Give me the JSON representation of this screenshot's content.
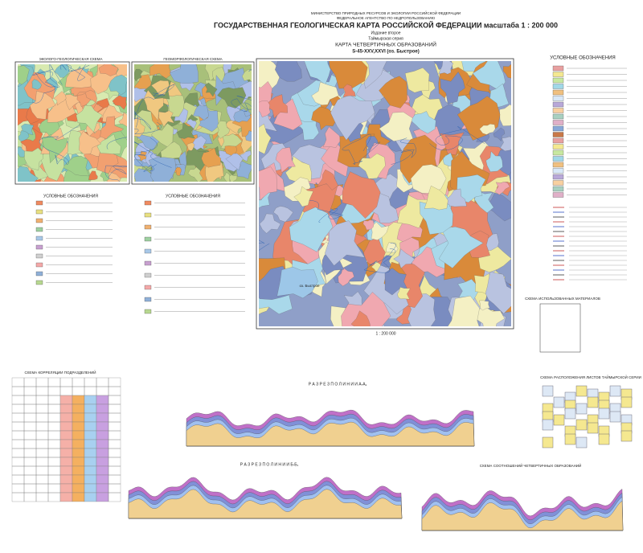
{
  "header": {
    "ministry": "МИНИСТЕРСТВО ПРИРОДНЫХ РЕСУРСОВ И ЭКОЛОГИИ РОССИЙСКОЙ ФЕДЕРАЦИИ",
    "agency": "ФЕДЕРАЛЬНОЕ АГЕНТСТВО ПО НЕДРОПОЛЬЗОВАНИЮ",
    "title": "ГОСУДАРСТВЕННАЯ ГЕОЛОГИЧЕСКАЯ КАРТА РОССИЙСКОЙ ФЕДЕРАЦИИ масштаба 1 : 200 000",
    "edition": "Издание второе",
    "series": "Таймырская серия",
    "map_title": "КАРТА ЧЕТВЕРТИЧНЫХ ОБРАЗОВАНИЙ",
    "sheet": "S-45-XXV,XXVI (оз. Быстрое)"
  },
  "panels": {
    "eco": "ЭКОЛОГО-ГЕОЛОГИЧЕСКАЯ СХЕМА",
    "geomorph": "ГЕОМОРФОЛОГИЧЕСКАЯ СХЕМА",
    "legend": "УСЛОВНЫЕ ОБОЗНАЧЕНИЯ",
    "correlation": "СХЕМА КОРРЕЛЯЦИИ ПОДРАЗДЕЛЕНИЙ",
    "section_a": "Р А З Р Е З   П О   Л И Н И И   А-А₁",
    "section_b": "Р А З Р Е З   П О   Л И Н И И   Б-Б₁",
    "relations": "СХЕМА СООТНОШЕНИЙ ЧЕТВЕРТИЧНЫХ ОБРАЗОВАНИЙ",
    "sheets": "СХЕМА РАСПОЛОЖЕНИЯ ЛИСТОВ ТАЙМЫРСКОЙ СЕРИИ",
    "materials": "СХЕМА ИСПОЛЬЗОВАННЫХ МАТЕРИАЛОВ",
    "scale": "1 : 200 000",
    "lake": "оз. Быстрое"
  }
}
